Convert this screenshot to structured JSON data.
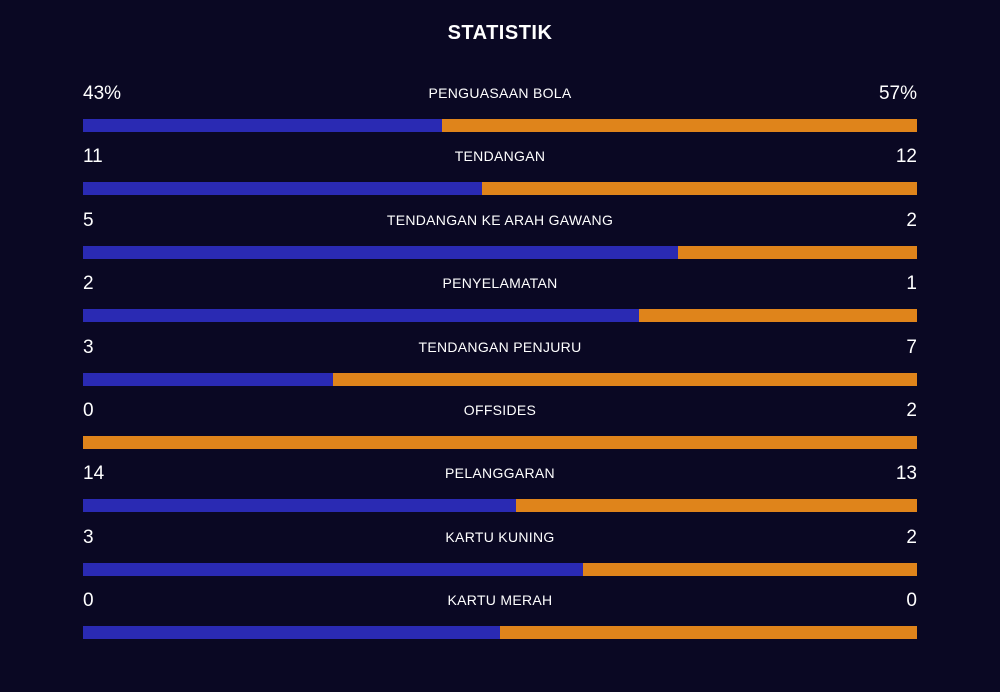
{
  "title": "STATISTIK",
  "colors": {
    "background": "#0a0823",
    "home": "#2a2ab3",
    "away": "#df841b"
  },
  "stats": [
    {
      "label": "PENGUASAAN BOLA",
      "home": "43%",
      "away": "57%",
      "home_share": 0.43
    },
    {
      "label": "TENDANGAN",
      "home": "11",
      "away": "12",
      "home_share": 0.478
    },
    {
      "label": "TENDANGAN KE ARAH GAWANG",
      "home": "5",
      "away": "2",
      "home_share": 0.714
    },
    {
      "label": "PENYELAMATAN",
      "home": "2",
      "away": "1",
      "home_share": 0.667
    },
    {
      "label": "TENDANGAN PENJURU",
      "home": "3",
      "away": "7",
      "home_share": 0.3
    },
    {
      "label": "OFFSIDES",
      "home": "0",
      "away": "2",
      "home_share": 0.0
    },
    {
      "label": "PELANGGARAN",
      "home": "14",
      "away": "13",
      "home_share": 0.519
    },
    {
      "label": "KARTU KUNING",
      "home": "3",
      "away": "2",
      "home_share": 0.6
    },
    {
      "label": "KARTU MERAH",
      "home": "0",
      "away": "0",
      "home_share": 0.5
    }
  ]
}
